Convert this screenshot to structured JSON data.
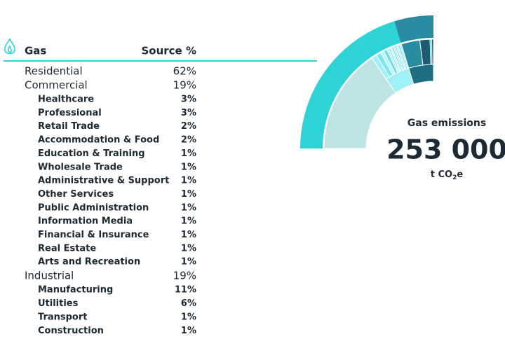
{
  "header": {
    "title": "Gas",
    "column": "Source %"
  },
  "groups": [
    {
      "name": "Residential",
      "value": 62,
      "label": "62%",
      "color": "#2ed3d6",
      "inner_color": "#bde3e3",
      "children": []
    },
    {
      "name": "Commercial",
      "value": 19,
      "label": "19%",
      "color": "#2ed3d6",
      "inner_color": "#9ef2f7",
      "children": [
        {
          "name": "Healthcare",
          "value": 3,
          "label": "3%"
        },
        {
          "name": "Professional",
          "value": 3,
          "label": "3%"
        },
        {
          "name": "Retail Trade",
          "value": 2,
          "label": "2%"
        },
        {
          "name": "Accommodation & Food",
          "value": 2,
          "label": "2%"
        },
        {
          "name": "Education & Training",
          "value": 1,
          "label": "1%"
        },
        {
          "name": "Wholesale Trade",
          "value": 1,
          "label": "1%"
        },
        {
          "name": "Administrative & Support",
          "value": 1,
          "label": "1%"
        },
        {
          "name": "Other Services",
          "value": 1,
          "label": "1%"
        },
        {
          "name": "Public Administration",
          "value": 1,
          "label": "1%"
        },
        {
          "name": "Information Media",
          "value": 1,
          "label": "1%"
        },
        {
          "name": "Financial & Insurance",
          "value": 1,
          "label": "1%"
        },
        {
          "name": "Real Estate",
          "value": 1,
          "label": "1%"
        },
        {
          "name": "Arts and Recreation",
          "value": 1,
          "label": "1%"
        }
      ]
    },
    {
      "name": "Industrial",
      "value": 19,
      "label": "19%",
      "color": "#2a8ca0",
      "inner_color": "#1f6f84",
      "children": [
        {
          "name": "Manufacturing",
          "value": 11,
          "label": "11%"
        },
        {
          "name": "Utilities",
          "value": 6,
          "label": "6%"
        },
        {
          "name": "Transport",
          "value": 1,
          "label": "1%"
        },
        {
          "name": "Construction",
          "value": 1,
          "label": "1%"
        }
      ]
    }
  ],
  "summary": {
    "title": "Gas emissions",
    "value": "253 000",
    "unit": "t CO",
    "unit_sub": "2",
    "unit_tail": "e"
  }
}
